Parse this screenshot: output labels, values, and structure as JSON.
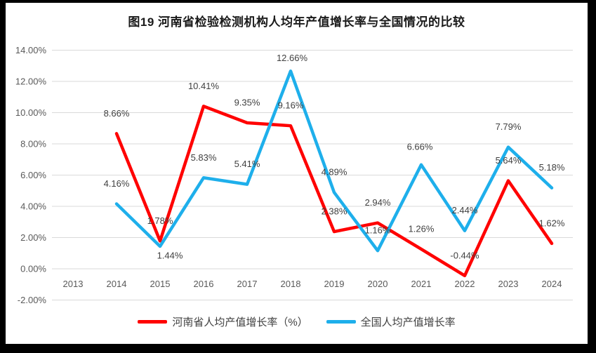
{
  "title": "图19  河南省检验检测机构人均年产值增长率与全国情况的比较",
  "chart_data": {
    "type": "line",
    "title": "图19  河南省检验检测机构人均年产值增长率与全国情况的比较",
    "categories": [
      "2013",
      "2014",
      "2015",
      "2016",
      "2017",
      "2018",
      "2019",
      "2020",
      "2021",
      "2022",
      "2023",
      "2024"
    ],
    "series": [
      {
        "name": "河南省人均产值增长率（%）",
        "color": "#FF0000",
        "values": [
          null,
          8.66,
          1.78,
          10.41,
          9.35,
          9.16,
          2.38,
          2.94,
          1.26,
          -0.44,
          5.64,
          1.62
        ],
        "labels": [
          null,
          "8.66%",
          "1.78%",
          "10.41%",
          "9.35%",
          "9.16%",
          "2.38%",
          "2.94%",
          "1.26%",
          "-0.44%",
          "5.64%",
          "1.62%"
        ]
      },
      {
        "name": "全国人均产值增长率",
        "color": "#1EAFEB",
        "values": [
          null,
          4.16,
          1.44,
          5.83,
          5.41,
          12.66,
          4.89,
          1.16,
          6.66,
          2.44,
          7.79,
          5.18
        ],
        "labels": [
          null,
          "4.16%",
          "1.44%",
          "5.83%",
          "5.41%",
          "12.66%",
          "4.89%",
          "1.16%",
          "6.66%",
          "2.44%",
          "7.79%",
          "5.18%"
        ]
      }
    ],
    "label_offsets": [
      {},
      {
        "2": [
          14,
          13
        ],
        "5": [
          2,
          -19
        ],
        "8": [
          -2,
          -26
        ]
      }
    ],
    "y_axis": {
      "min": -2,
      "max": 14,
      "step": 2,
      "tick_labels": [
        "14.00%",
        "12.00%",
        "10.00%",
        "8.00%",
        "6.00%",
        "4.00%",
        "2.00%",
        "0.00%",
        "-2.00%"
      ]
    },
    "xlabel": "",
    "ylabel": "",
    "grid": true,
    "legend_position": "bottom",
    "colors": {
      "gridline": "#D9D9D9",
      "tick_text": "#595959",
      "data_label_text": "#404040",
      "frame_border": "#000000",
      "plot_bg": "#FFFFFF"
    }
  }
}
